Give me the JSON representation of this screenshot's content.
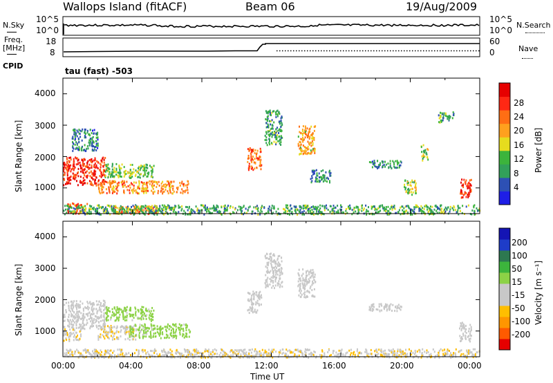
{
  "header": {
    "station": "Wallops Island (fitACF)",
    "beam": "Beam 06",
    "date": "19/Aug/2009"
  },
  "status_panels": {
    "nsky_label": "N.Sky",
    "nsky_ticks": [
      "10^5",
      "10^0"
    ],
    "nsearch_label": "N.Search",
    "nsearch_ticks": [
      "10^5",
      "10^0"
    ],
    "freq_label_1": "Freq.",
    "freq_label_2": "[MHz]",
    "freq_ticks": [
      "18",
      "8"
    ],
    "nave_label": "Nave",
    "nave_ticks": [
      "60",
      "0"
    ],
    "cpid_label": "CPID",
    "cpid_value": "tau (fast) -503"
  },
  "colors": {
    "power_scale": [
      "#1e1ee6",
      "#2d50b4",
      "#32a05a",
      "#3cb43c",
      "#e6dc1e",
      "#ffa01e",
      "#ff6e14",
      "#ff2814",
      "#e60000"
    ],
    "velocity_scale": [
      "#e60000",
      "#ff5a00",
      "#ff9600",
      "#ffbe00",
      "#c8c8c8",
      "#c8c8c8",
      "#8cd246",
      "#3cb43c",
      "#2d7850",
      "#1e3cc8",
      "#1414b4"
    ]
  },
  "chart_data": [
    {
      "type": "heatmap",
      "panel": "power",
      "xlabel": "",
      "ylabel": "Slant Range [km]",
      "x_ticks": [
        "00:00",
        "04:00",
        "08:00",
        "12:00",
        "16:00",
        "20:00",
        "00:00"
      ],
      "y_ticks": [
        "1000",
        "2000",
        "3000",
        "4000"
      ],
      "xlim_hours": [
        0,
        24
      ],
      "ylim_km": [
        180,
        4500
      ],
      "colorbar_label": "Power [dB]",
      "colorbar_ticks": [
        "28",
        "24",
        "20",
        "16",
        "12",
        "8",
        "4"
      ],
      "colorbar_range": [
        0,
        30
      ],
      "regions": [
        {
          "t0": 0.0,
          "t1": 2.4,
          "r0": 1100,
          "r1": 2000,
          "level": 26
        },
        {
          "t0": 0.5,
          "t1": 2.0,
          "r0": 2200,
          "r1": 2900,
          "level": 8
        },
        {
          "t0": 2.0,
          "t1": 7.2,
          "r0": 850,
          "r1": 1250,
          "level": 20
        },
        {
          "t0": 2.4,
          "t1": 5.2,
          "r0": 1350,
          "r1": 1800,
          "level": 12
        },
        {
          "t0": 0.2,
          "t1": 1.4,
          "r0": 200,
          "r1": 550,
          "level": 22
        },
        {
          "t0": 2.8,
          "t1": 5.4,
          "r0": 200,
          "r1": 450,
          "level": 22
        },
        {
          "t0": 0.0,
          "t1": 24.0,
          "r0": 180,
          "r1": 480,
          "level": 10
        },
        {
          "t0": 10.6,
          "t1": 11.4,
          "r0": 1600,
          "r1": 2300,
          "level": 22
        },
        {
          "t0": 11.6,
          "t1": 12.6,
          "r0": 2400,
          "r1": 3500,
          "level": 10
        },
        {
          "t0": 13.5,
          "t1": 14.5,
          "r0": 2100,
          "r1": 3000,
          "level": 18
        },
        {
          "t0": 14.2,
          "t1": 15.4,
          "r0": 1200,
          "r1": 1600,
          "level": 8
        },
        {
          "t0": 17.5,
          "t1": 19.5,
          "r0": 1650,
          "r1": 1900,
          "level": 8
        },
        {
          "t0": 19.6,
          "t1": 20.3,
          "r0": 800,
          "r1": 1300,
          "level": 14
        },
        {
          "t0": 22.8,
          "t1": 23.5,
          "r0": 700,
          "r1": 1300,
          "level": 26
        },
        {
          "t0": 21.6,
          "t1": 22.5,
          "r0": 3100,
          "r1": 3450,
          "level": 10
        },
        {
          "t0": 20.6,
          "t1": 21.0,
          "r0": 1900,
          "r1": 2400,
          "level": 12
        }
      ]
    },
    {
      "type": "heatmap",
      "panel": "velocity",
      "xlabel": "Time UT",
      "ylabel": "Slant Range [km]",
      "x_ticks": [
        "00:00",
        "04:00",
        "08:00",
        "12:00",
        "16:00",
        "20:00",
        "00:00"
      ],
      "y_ticks": [
        "1000",
        "2000",
        "3000",
        "4000"
      ],
      "xlim_hours": [
        0,
        24
      ],
      "ylim_km": [
        180,
        4500
      ],
      "colorbar_label": "Velocity [m s⁻¹]",
      "colorbar_ticks": [
        "200",
        "100",
        "50",
        "15",
        "-15",
        "-50",
        "-100",
        "-200"
      ],
      "colorbar_range": [
        -250,
        250
      ],
      "regions": [
        {
          "t0": 0.0,
          "t1": 2.4,
          "r0": 1100,
          "r1": 2000,
          "level": 0
        },
        {
          "t0": 0.0,
          "t1": 1.0,
          "r0": 700,
          "r1": 1100,
          "level": -60
        },
        {
          "t0": 2.0,
          "t1": 4.2,
          "r0": 750,
          "r1": 1200,
          "level": -60
        },
        {
          "t0": 3.8,
          "t1": 7.3,
          "r0": 800,
          "r1": 1250,
          "level": 40
        },
        {
          "t0": 2.4,
          "t1": 5.2,
          "r0": 1350,
          "r1": 1800,
          "level": 40
        },
        {
          "t0": 0.0,
          "t1": 24.0,
          "r0": 180,
          "r1": 450,
          "level": -60
        },
        {
          "t0": 10.6,
          "t1": 11.4,
          "r0": 1600,
          "r1": 2300,
          "level": 0
        },
        {
          "t0": 11.6,
          "t1": 12.6,
          "r0": 2400,
          "r1": 3500,
          "level": 0
        },
        {
          "t0": 13.5,
          "t1": 14.5,
          "r0": 2100,
          "r1": 3000,
          "level": 0
        },
        {
          "t0": 17.5,
          "t1": 19.5,
          "r0": 1650,
          "r1": 1900,
          "level": 0
        },
        {
          "t0": 22.8,
          "t1": 23.5,
          "r0": 700,
          "r1": 1300,
          "level": 0
        }
      ]
    }
  ]
}
